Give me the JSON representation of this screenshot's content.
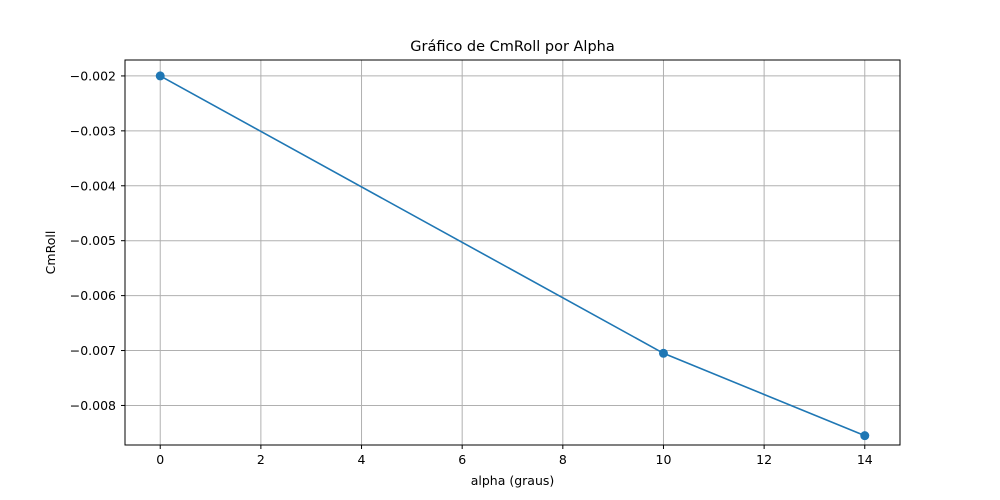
{
  "chart_data": {
    "type": "line",
    "title": "Gráfico de CmRoll por Alpha",
    "xlabel": "alpha (graus)",
    "ylabel": "CmRoll",
    "xlim": [
      -0.7,
      14.7
    ],
    "ylim": [
      -0.00872,
      -0.00171
    ],
    "xticks": [
      0,
      2,
      4,
      6,
      8,
      10,
      12,
      14
    ],
    "yticks": [
      -0.008,
      -0.007,
      -0.006,
      -0.005,
      -0.004,
      -0.003,
      -0.002
    ],
    "xtick_labels": [
      "0",
      "2",
      "4",
      "6",
      "8",
      "10",
      "12",
      "14"
    ],
    "ytick_labels": [
      "−0.008",
      "−0.007",
      "−0.006",
      "−0.005",
      "−0.004",
      "−0.003",
      "−0.002"
    ],
    "grid": true,
    "series": [
      {
        "x": [
          0,
          10,
          14
        ],
        "y": [
          -0.002,
          -0.00705,
          -0.00855
        ],
        "color": "#1f77b4",
        "marker": "circle"
      }
    ]
  }
}
